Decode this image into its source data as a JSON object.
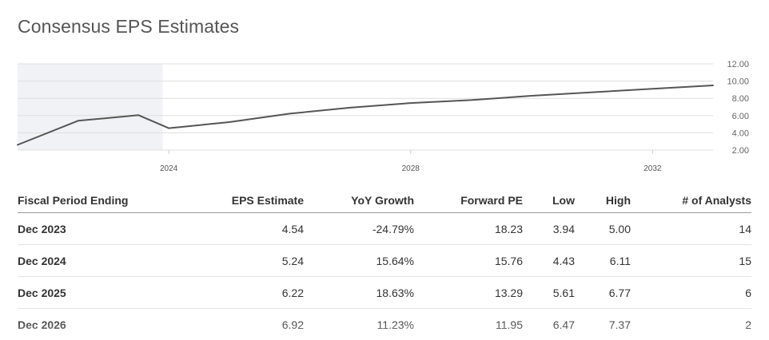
{
  "title": "Consensus EPS Estimates",
  "chart_data": {
    "type": "line",
    "title": "",
    "xlabel": "",
    "ylabel": "",
    "x": [
      2021.5,
      2022.5,
      2023.5,
      2024.0,
      2025.0,
      2026.0,
      2027.0,
      2028.0,
      2029.0,
      2030.0,
      2031.0,
      2032.0,
      2033.0
    ],
    "series": [
      {
        "values": [
          2.6,
          5.4,
          6.05,
          4.54,
          5.24,
          6.22,
          6.92,
          7.45,
          7.8,
          8.3,
          8.7,
          9.1,
          9.5
        ],
        "color": "#555555"
      }
    ],
    "xlim": [
      2021.5,
      2033.0
    ],
    "ylim": [
      2.0,
      12.0
    ],
    "xticks": [
      2024,
      2028,
      2032
    ],
    "yticks": [
      "12.00",
      "10.00",
      "8.00",
      "6.00",
      "4.00",
      "2.00"
    ],
    "ytick_values": [
      12,
      10,
      8,
      6,
      4,
      2
    ],
    "shaded_until": 2023.9,
    "shade_color": "#f1f2f5",
    "grid": true
  },
  "table": {
    "headers": [
      "Fiscal Period Ending",
      "EPS Estimate",
      "YoY Growth",
      "Forward PE",
      "Low",
      "High",
      "# of Analysts"
    ],
    "rows": [
      [
        "Dec 2023",
        "4.54",
        "-24.79%",
        "18.23",
        "3.94",
        "5.00",
        "14"
      ],
      [
        "Dec 2024",
        "5.24",
        "15.64%",
        "15.76",
        "4.43",
        "6.11",
        "15"
      ],
      [
        "Dec 2025",
        "6.22",
        "18.63%",
        "13.29",
        "5.61",
        "6.77",
        "6"
      ],
      [
        "Dec 2026",
        "6.92",
        "11.23%",
        "11.95",
        "6.47",
        "7.37",
        "2"
      ]
    ]
  }
}
